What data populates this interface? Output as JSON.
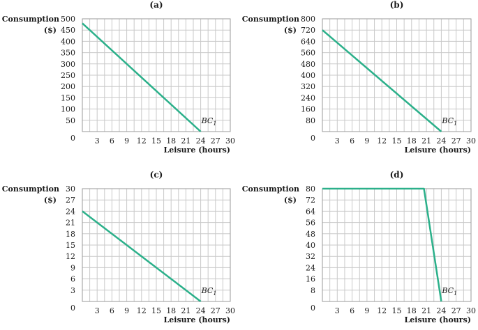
{
  "chart_data": [
    {
      "type": "line",
      "title": "(a)",
      "ylabel_line1": "Consumption",
      "ylabel_line2": "($)",
      "xlabel": "Leisure (hours)",
      "xlim": [
        0,
        30
      ],
      "ylim": [
        0,
        500
      ],
      "xticks": [
        3,
        6,
        9,
        12,
        15,
        18,
        21,
        24,
        27,
        30
      ],
      "yticks": [
        50,
        100,
        150,
        200,
        250,
        300,
        350,
        400,
        450,
        500
      ],
      "origin_label": "0",
      "grid": true,
      "series": [
        {
          "name": "BC",
          "name_sub": "1",
          "color": "#2bb08a",
          "points": [
            [
              0,
              480
            ],
            [
              24,
              0
            ]
          ]
        }
      ]
    },
    {
      "type": "line",
      "title": "(b)",
      "ylabel_line1": "Consumption",
      "ylabel_line2": "($)",
      "xlabel": "Leisure (hours)",
      "xlim": [
        0,
        30
      ],
      "ylim": [
        0,
        800
      ],
      "xticks": [
        3,
        6,
        9,
        12,
        15,
        18,
        21,
        24,
        27,
        30
      ],
      "yticks": [
        80,
        160,
        240,
        320,
        400,
        480,
        560,
        640,
        720,
        800
      ],
      "origin_label": "0",
      "grid": true,
      "series": [
        {
          "name": "BC",
          "name_sub": "1",
          "color": "#2bb08a",
          "points": [
            [
              0,
              720
            ],
            [
              24,
              0
            ]
          ]
        }
      ]
    },
    {
      "type": "line",
      "title": "(c)",
      "ylabel_line1": "Consumption",
      "ylabel_line2": "($)",
      "xlabel": "Leisure (hours)",
      "xlim": [
        0,
        30
      ],
      "ylim": [
        0,
        30
      ],
      "xticks": [
        3,
        6,
        9,
        12,
        15,
        18,
        21,
        24,
        27,
        30
      ],
      "yticks": [
        3,
        6,
        9,
        12,
        15,
        18,
        21,
        24,
        27,
        30
      ],
      "origin_label": "0",
      "grid": true,
      "series": [
        {
          "name": "BC",
          "name_sub": "1",
          "color": "#2bb08a",
          "points": [
            [
              0,
              24
            ],
            [
              24,
              0
            ]
          ]
        }
      ]
    },
    {
      "type": "line",
      "title": "(d)",
      "ylabel_line1": "Consumption",
      "ylabel_line2": "($)",
      "xlabel": "Leisure (hours)",
      "xlim": [
        0,
        30
      ],
      "ylim": [
        0,
        80
      ],
      "xticks": [
        3,
        6,
        9,
        12,
        15,
        18,
        21,
        24,
        27,
        30
      ],
      "yticks": [
        8,
        16,
        24,
        32,
        40,
        48,
        56,
        64,
        72,
        80
      ],
      "origin_label": "0",
      "grid": true,
      "series": [
        {
          "name": "BC",
          "name_sub": "1",
          "color": "#2bb08a",
          "points": [
            [
              0,
              80
            ],
            [
              20.5,
              80
            ],
            [
              24,
              0
            ]
          ]
        }
      ]
    }
  ]
}
